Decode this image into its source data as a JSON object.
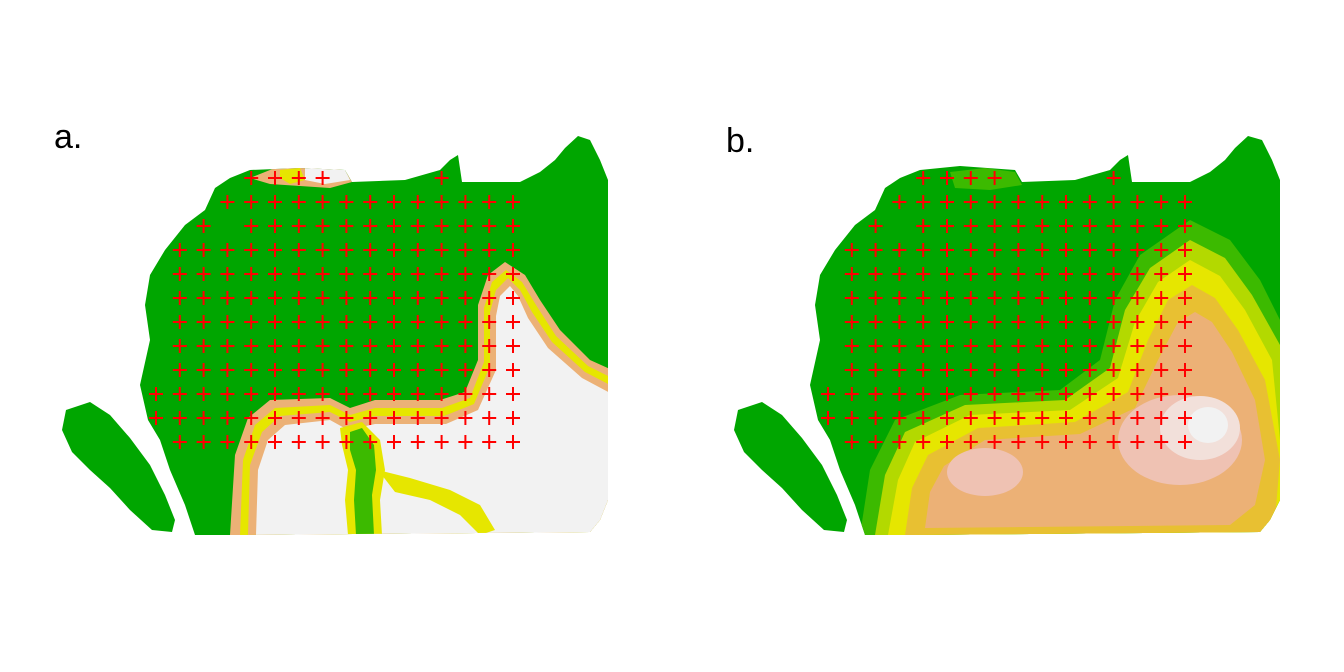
{
  "chart_data": {
    "type": "heatmap",
    "colors": {
      "green": "#00a600",
      "light_green": "#3cba00",
      "yellow_green": "#b3d900",
      "yellow": "#e6e600",
      "tan": "#e8c032",
      "salmon": "#ecb176",
      "pink": "#efc2b3",
      "white": "#f2f2f2",
      "marker": "#ff0000"
    },
    "panels": [
      {
        "label": "a.",
        "sample_rows": [
          {
            "row": 0,
            "cols": [
              4,
              5,
              6,
              7,
              12
            ]
          },
          {
            "row": 1,
            "cols": [
              3,
              4,
              5,
              6,
              7,
              8,
              9,
              10,
              11,
              12,
              13,
              14,
              15
            ]
          },
          {
            "row": 2,
            "cols": [
              2,
              4,
              5,
              6,
              7,
              8,
              9,
              10,
              11,
              12,
              13,
              14,
              15
            ]
          },
          {
            "row": 3,
            "cols": [
              1,
              2,
              3,
              4,
              5,
              6,
              7,
              8,
              9,
              10,
              11,
              12,
              13,
              14,
              15
            ]
          },
          {
            "row": 4,
            "cols": [
              1,
              2,
              3,
              4,
              5,
              6,
              7,
              8,
              9,
              10,
              11,
              12,
              13,
              14,
              15
            ]
          },
          {
            "row": 5,
            "cols": [
              1,
              2,
              3,
              4,
              5,
              6,
              7,
              8,
              9,
              10,
              11,
              12,
              13,
              14,
              15
            ]
          },
          {
            "row": 6,
            "cols": [
              1,
              2,
              3,
              4,
              5,
              6,
              7,
              8,
              9,
              10,
              11,
              12,
              13,
              14,
              15
            ]
          },
          {
            "row": 7,
            "cols": [
              1,
              2,
              3,
              4,
              5,
              6,
              7,
              8,
              9,
              10,
              11,
              12,
              13,
              14,
              15
            ]
          },
          {
            "row": 8,
            "cols": [
              1,
              2,
              3,
              4,
              5,
              6,
              7,
              8,
              9,
              10,
              11,
              12,
              13,
              14,
              15
            ]
          },
          {
            "row": 9,
            "cols": [
              0,
              1,
              2,
              3,
              4,
              5,
              6,
              7,
              8,
              9,
              10,
              11,
              12,
              13,
              14,
              15
            ]
          },
          {
            "row": 10,
            "cols": [
              0,
              1,
              2,
              3,
              4,
              5,
              6,
              7,
              8,
              9,
              10,
              11,
              12,
              13,
              14,
              15
            ]
          },
          {
            "row": 11,
            "cols": [
              1,
              2,
              3,
              4,
              5,
              6,
              7,
              8,
              9,
              10,
              11,
              12,
              13,
              14,
              15
            ]
          }
        ]
      },
      {
        "label": "b.",
        "sample_rows": [
          {
            "row": 0,
            "cols": [
              4,
              5,
              6,
              7,
              12
            ]
          },
          {
            "row": 1,
            "cols": [
              3,
              4,
              5,
              6,
              7,
              8,
              9,
              10,
              11,
              12,
              13,
              14,
              15
            ]
          },
          {
            "row": 2,
            "cols": [
              2,
              4,
              5,
              6,
              7,
              8,
              9,
              10,
              11,
              12,
              13,
              14,
              15
            ]
          },
          {
            "row": 3,
            "cols": [
              1,
              2,
              3,
              4,
              5,
              6,
              7,
              8,
              9,
              10,
              11,
              12,
              13,
              14,
              15
            ]
          },
          {
            "row": 4,
            "cols": [
              1,
              2,
              3,
              4,
              5,
              6,
              7,
              8,
              9,
              10,
              11,
              12,
              13,
              14,
              15
            ]
          },
          {
            "row": 5,
            "cols": [
              1,
              2,
              3,
              4,
              5,
              6,
              7,
              8,
              9,
              10,
              11,
              12,
              13,
              14,
              15
            ]
          },
          {
            "row": 6,
            "cols": [
              1,
              2,
              3,
              4,
              5,
              6,
              7,
              8,
              9,
              10,
              11,
              12,
              13,
              14,
              15
            ]
          },
          {
            "row": 7,
            "cols": [
              1,
              2,
              3,
              4,
              5,
              6,
              7,
              8,
              9,
              10,
              11,
              12,
              13,
              14,
              15
            ]
          },
          {
            "row": 8,
            "cols": [
              1,
              2,
              3,
              4,
              5,
              6,
              7,
              8,
              9,
              10,
              11,
              12,
              13,
              14,
              15
            ]
          },
          {
            "row": 9,
            "cols": [
              0,
              1,
              2,
              3,
              4,
              5,
              6,
              7,
              8,
              9,
              10,
              11,
              12,
              13,
              14,
              15
            ]
          },
          {
            "row": 10,
            "cols": [
              0,
              1,
              2,
              3,
              4,
              5,
              6,
              7,
              8,
              9,
              10,
              11,
              12,
              13,
              14,
              15
            ]
          },
          {
            "row": 11,
            "cols": [
              1,
              2,
              3,
              4,
              5,
              6,
              7,
              8,
              9,
              10,
              11,
              12,
              13,
              14,
              15
            ]
          }
        ]
      }
    ]
  }
}
